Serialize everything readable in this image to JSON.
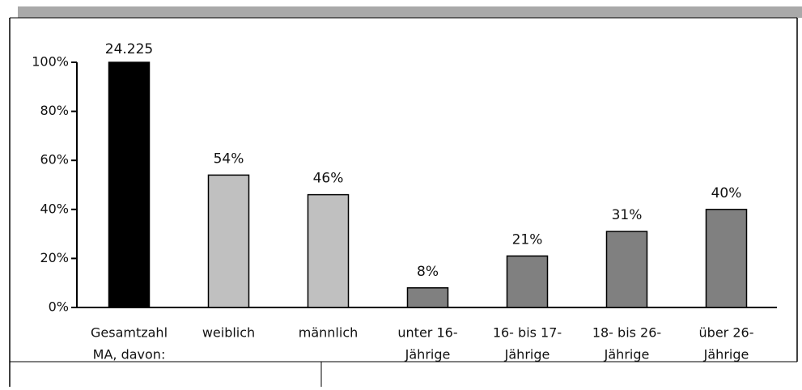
{
  "chart_data": {
    "type": "bar",
    "categories": [
      [
        "Gesamtzahl",
        "MA, davon:"
      ],
      [
        "weiblich"
      ],
      [
        "männlich"
      ],
      [
        "unter 16-",
        "Jährige"
      ],
      [
        "16- bis 17-",
        "Jährige"
      ],
      [
        "18- bis 26-",
        "Jährige"
      ],
      [
        "über 26-",
        "Jährige"
      ]
    ],
    "values": [
      100,
      54,
      46,
      8,
      21,
      31,
      40
    ],
    "value_labels": [
      null,
      "54%",
      "46%",
      "8%",
      "21%",
      "31%",
      "40%"
    ],
    "annotation": "24.225",
    "colors": [
      "#000000",
      "#c0c0c0",
      "#c0c0c0",
      "#808080",
      "#808080",
      "#808080",
      "#808080"
    ],
    "ylim": [
      0,
      100
    ],
    "yticks": [
      {
        "value": 0,
        "label": "0%"
      },
      {
        "value": 20,
        "label": "20%"
      },
      {
        "value": 40,
        "label": "40%"
      },
      {
        "value": 60,
        "label": "60%"
      },
      {
        "value": 80,
        "label": "80%"
      },
      {
        "value": 100,
        "label": "100%"
      }
    ],
    "grid": false
  }
}
